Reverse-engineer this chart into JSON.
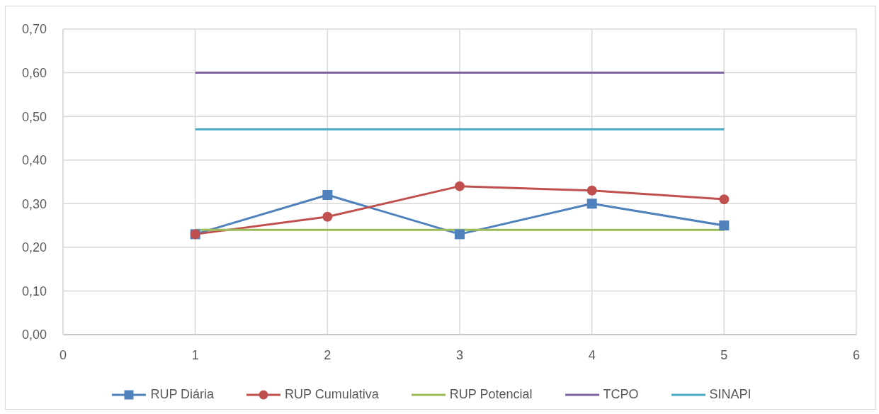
{
  "chart_data": {
    "type": "line",
    "x": [
      1,
      2,
      3,
      4,
      5
    ],
    "series": [
      {
        "name": "RUP Diária",
        "color": "#4f81bd",
        "marker": "square",
        "values": [
          0.23,
          0.32,
          0.23,
          0.3,
          0.25
        ]
      },
      {
        "name": "RUP Cumulativa",
        "color": "#c0504d",
        "marker": "circle",
        "values": [
          0.23,
          0.27,
          0.34,
          0.33,
          0.31
        ]
      },
      {
        "name": "RUP Potencial",
        "color": "#9bbb59",
        "marker": "none",
        "values": [
          0.24,
          0.24,
          0.24,
          0.24,
          0.24
        ]
      },
      {
        "name": "TCPO",
        "color": "#8064a2",
        "marker": "none",
        "values": [
          0.6,
          0.6,
          0.6,
          0.6,
          0.6
        ]
      },
      {
        "name": "SINAPI",
        "color": "#4bacc6",
        "marker": "none",
        "values": [
          0.47,
          0.47,
          0.47,
          0.47,
          0.47
        ]
      }
    ],
    "xlim": [
      0,
      6
    ],
    "xticks": [
      0,
      1,
      2,
      3,
      4,
      5,
      6
    ],
    "ylim": [
      0,
      0.7
    ],
    "yticks": [
      {
        "value": 0,
        "label": "0,00"
      },
      {
        "value": 0.1,
        "label": "0,10"
      },
      {
        "value": 0.2,
        "label": "0,20"
      },
      {
        "value": 0.3,
        "label": "0,30"
      },
      {
        "value": 0.4,
        "label": "0,40"
      },
      {
        "value": 0.5,
        "label": "0,50"
      },
      {
        "value": 0.6,
        "label": "0,60"
      },
      {
        "value": 0.7,
        "label": "0,70"
      }
    ],
    "grid": true,
    "legend": "bottom",
    "line_style": "solid"
  }
}
